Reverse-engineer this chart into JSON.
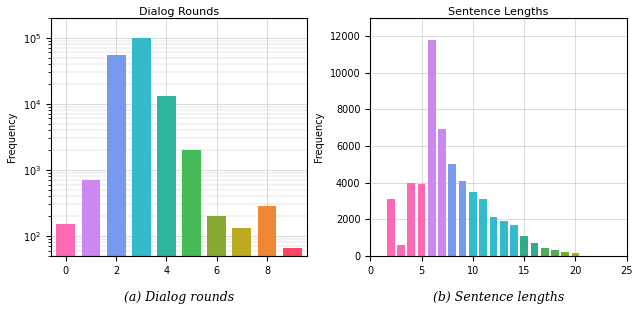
{
  "dialog_title": "Dialog Rounds",
  "dialog_bars": [
    {
      "x": 0,
      "val": 150,
      "color": "#ff69b4"
    },
    {
      "x": 1,
      "val": 700,
      "color": "#cc88ee"
    },
    {
      "x": 2,
      "val": 55000,
      "color": "#7799ee"
    },
    {
      "x": 3,
      "val": 100000,
      "color": "#33bbcc"
    },
    {
      "x": 4,
      "val": 13000,
      "color": "#2db5a0"
    },
    {
      "x": 5,
      "val": 2000,
      "color": "#44bb55"
    },
    {
      "x": 6,
      "val": 200,
      "color": "#88aa33"
    },
    {
      "x": 7,
      "val": 130,
      "color": "#bbaa22"
    },
    {
      "x": 8,
      "val": 280,
      "color": "#ee8833"
    },
    {
      "x": 9,
      "val": 65,
      "color": "#ff4466"
    }
  ],
  "dialog_xticks": [
    0,
    2,
    4,
    6,
    8
  ],
  "dialog_xlim": [
    -0.6,
    9.6
  ],
  "dialog_ylim": [
    50,
    200000
  ],
  "sentence_title": "Sentence Lengths",
  "sentence_bars": [
    {
      "x": 2,
      "val": 3100,
      "color": "#ff69b4"
    },
    {
      "x": 3,
      "val": 600,
      "color": "#ff69b4"
    },
    {
      "x": 4,
      "val": 4000,
      "color": "#ff69b4"
    },
    {
      "x": 5,
      "val": 3900,
      "color": "#ff69b4"
    },
    {
      "x": 6,
      "val": 11800,
      "color": "#cc88ee"
    },
    {
      "x": 7,
      "val": 6900,
      "color": "#cc88ee"
    },
    {
      "x": 8,
      "val": 5000,
      "color": "#7799ee"
    },
    {
      "x": 9,
      "val": 4100,
      "color": "#7799ee"
    },
    {
      "x": 10,
      "val": 3500,
      "color": "#33bbcc"
    },
    {
      "x": 11,
      "val": 3100,
      "color": "#33bbcc"
    },
    {
      "x": 12,
      "val": 2100,
      "color": "#33bbcc"
    },
    {
      "x": 13,
      "val": 1900,
      "color": "#33bbcc"
    },
    {
      "x": 14,
      "val": 1700,
      "color": "#33bbcc"
    },
    {
      "x": 15,
      "val": 1100,
      "color": "#33aa88"
    },
    {
      "x": 16,
      "val": 700,
      "color": "#33aa88"
    },
    {
      "x": 17,
      "val": 450,
      "color": "#55aa55"
    },
    {
      "x": 18,
      "val": 320,
      "color": "#55aa55"
    },
    {
      "x": 19,
      "val": 200,
      "color": "#77aa33"
    },
    {
      "x": 20,
      "val": 150,
      "color": "#aaaa22"
    }
  ],
  "sentence_xticks": [
    0,
    5,
    10,
    15,
    20,
    25
  ],
  "sentence_xlim": [
    0,
    25
  ],
  "sentence_ylim": [
    0,
    13000
  ],
  "sentence_yticks": [
    0,
    2000,
    4000,
    6000,
    8000,
    10000,
    12000
  ],
  "ylabel": "Frequency",
  "caption_a": "(a) Dialog rounds",
  "caption_b": "(b) Sentence lengths",
  "bar_width": 0.75,
  "grid_color": "#cccccc",
  "grid_lw": 0.5
}
